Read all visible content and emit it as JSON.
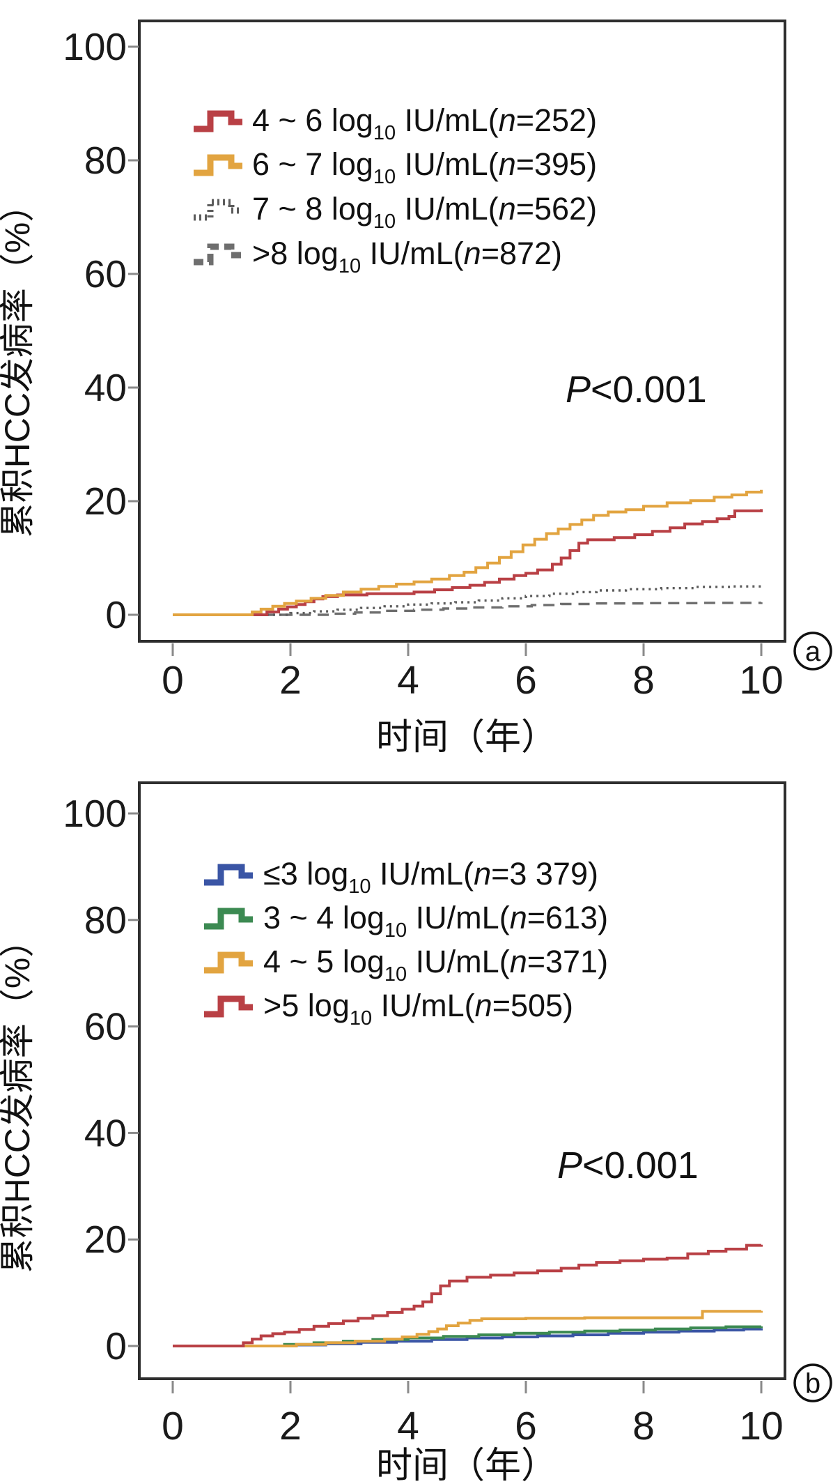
{
  "figure": {
    "background": "#ffffff"
  },
  "chart_data": [
    {
      "type": "line",
      "step": true,
      "panel_label": "a",
      "xlabel": "时间（年）",
      "ylabel": "累积HCC发病率（%）",
      "xlim": [
        0,
        10
      ],
      "ylim": [
        0,
        100
      ],
      "xticks": [
        "0",
        "2",
        "4",
        "6",
        "8",
        "10"
      ],
      "yticks": [
        "0",
        "20",
        "40",
        "60",
        "80",
        "100"
      ],
      "grid": false,
      "legend_position": "upper-left-inside",
      "annotation": {
        "italic": "P",
        "text": "<0.001"
      },
      "series": [
        {
          "id": "4-6",
          "name": "4~6 log10 IU/mL",
          "n": 252,
          "color": "#b94045",
          "line_style": "solid",
          "draw_order": 3,
          "legend": {
            "pre": "4 ~ 6 log",
            "sub": "10",
            "mid": " IU/mL(",
            "n_label": "n",
            "post": "=252)"
          },
          "points": [
            [
              0,
              0
            ],
            [
              1.5,
              0
            ],
            [
              1.6,
              0.5
            ],
            [
              1.8,
              1.0
            ],
            [
              1.95,
              1.4
            ],
            [
              2.1,
              1.8
            ],
            [
              2.25,
              2.3
            ],
            [
              2.4,
              2.8
            ],
            [
              2.55,
              3.2
            ],
            [
              2.8,
              3.5
            ],
            [
              3.3,
              3.7
            ],
            [
              4.1,
              4.0
            ],
            [
              4.45,
              4.4
            ],
            [
              4.75,
              4.8
            ],
            [
              5.05,
              5.2
            ],
            [
              5.3,
              5.7
            ],
            [
              5.55,
              6.3
            ],
            [
              5.8,
              6.9
            ],
            [
              6.0,
              7.3
            ],
            [
              6.2,
              7.9
            ],
            [
              6.45,
              8.9
            ],
            [
              6.6,
              10.0
            ],
            [
              6.75,
              11.3
            ],
            [
              6.9,
              12.6
            ],
            [
              7.05,
              13.2
            ],
            [
              7.5,
              13.6
            ],
            [
              7.85,
              14.1
            ],
            [
              8.15,
              14.7
            ],
            [
              8.45,
              15.3
            ],
            [
              8.7,
              16.0
            ],
            [
              9.0,
              16.4
            ],
            [
              9.25,
              16.9
            ],
            [
              9.45,
              17.3
            ],
            [
              9.55,
              18.3
            ],
            [
              10,
              18.6
            ]
          ]
        },
        {
          "id": "6-7",
          "name": "6~7 log10 IU/mL",
          "n": 395,
          "color": "#e2a440",
          "line_style": "solid",
          "draw_order": 4,
          "legend": {
            "pre": "6 ~ 7 log",
            "sub": "10",
            "mid": " IU/mL(",
            "n_label": "n",
            "post": "=395)"
          },
          "points": [
            [
              0,
              0
            ],
            [
              1.25,
              0
            ],
            [
              1.35,
              0.5
            ],
            [
              1.5,
              1.0
            ],
            [
              1.7,
              1.5
            ],
            [
              1.9,
              2.0
            ],
            [
              2.1,
              2.4
            ],
            [
              2.35,
              2.9
            ],
            [
              2.6,
              3.4
            ],
            [
              2.9,
              4.0
            ],
            [
              3.2,
              4.5
            ],
            [
              3.5,
              5.0
            ],
            [
              3.8,
              5.4
            ],
            [
              4.1,
              5.8
            ],
            [
              4.4,
              6.3
            ],
            [
              4.7,
              6.9
            ],
            [
              4.95,
              7.5
            ],
            [
              5.15,
              8.3
            ],
            [
              5.35,
              9.1
            ],
            [
              5.55,
              10.1
            ],
            [
              5.75,
              11.1
            ],
            [
              5.95,
              12.3
            ],
            [
              6.15,
              13.3
            ],
            [
              6.35,
              14.3
            ],
            [
              6.55,
              15.1
            ],
            [
              6.75,
              15.9
            ],
            [
              6.95,
              16.7
            ],
            [
              7.15,
              17.5
            ],
            [
              7.4,
              18.1
            ],
            [
              7.7,
              18.5
            ],
            [
              8.0,
              19.1
            ],
            [
              8.4,
              19.7
            ],
            [
              8.8,
              20.1
            ],
            [
              9.2,
              20.7
            ],
            [
              9.5,
              21.1
            ],
            [
              9.75,
              21.6
            ],
            [
              10,
              22.0
            ]
          ]
        },
        {
          "id": "7-8",
          "name": "7~8 log10 IU/mL",
          "n": 562,
          "color": "#5c5c5c",
          "line_style": "dotted",
          "draw_order": 2,
          "legend": {
            "pre": "7 ~ 8 log",
            "sub": "10",
            "mid": " IU/mL(",
            "n_label": "n",
            "post": "=562)"
          },
          "points": [
            [
              0,
              0
            ],
            [
              1.7,
              0
            ],
            [
              2.0,
              0.3
            ],
            [
              2.4,
              0.6
            ],
            [
              2.8,
              0.9
            ],
            [
              3.2,
              1.2
            ],
            [
              3.6,
              1.5
            ],
            [
              4.0,
              1.8
            ],
            [
              4.4,
              2.0
            ],
            [
              4.8,
              2.2
            ],
            [
              5.2,
              2.5
            ],
            [
              5.6,
              2.9
            ],
            [
              6.0,
              3.3
            ],
            [
              6.4,
              3.7
            ],
            [
              6.8,
              4.0
            ],
            [
              7.2,
              4.3
            ],
            [
              7.7,
              4.5
            ],
            [
              8.3,
              4.7
            ],
            [
              8.9,
              4.9
            ],
            [
              9.5,
              5.0
            ],
            [
              10,
              5.0
            ]
          ]
        },
        {
          "id": "gt8",
          "name": ">8 log10 IU/mL",
          "n": 872,
          "color": "#6e6e6e",
          "line_style": "dashed",
          "draw_order": 1,
          "legend": {
            "pre": ">8 log",
            "sub": "10",
            "mid": " IU/mL(",
            "n_label": "n",
            "post": "=872)"
          },
          "points": [
            [
              0,
              0
            ],
            [
              2.3,
              0
            ],
            [
              2.7,
              0.2
            ],
            [
              3.1,
              0.4
            ],
            [
              3.6,
              0.7
            ],
            [
              4.1,
              0.9
            ],
            [
              4.6,
              1.1
            ],
            [
              5.1,
              1.3
            ],
            [
              5.6,
              1.5
            ],
            [
              6.1,
              1.7
            ],
            [
              6.6,
              1.9
            ],
            [
              7.1,
              2.0
            ],
            [
              8.0,
              2.05
            ],
            [
              9.0,
              2.1
            ],
            [
              10,
              2.2
            ]
          ]
        }
      ]
    },
    {
      "type": "line",
      "step": true,
      "panel_label": "b",
      "xlabel": "时间（年）",
      "ylabel": "累积HCC发病率（%）",
      "xlim": [
        0,
        10
      ],
      "ylim": [
        0,
        100
      ],
      "xticks": [
        "0",
        "2",
        "4",
        "6",
        "8",
        "10"
      ],
      "yticks": [
        "0",
        "20",
        "40",
        "60",
        "80",
        "100"
      ],
      "grid": false,
      "legend_position": "upper-left-inside",
      "annotation": {
        "italic": "P",
        "text": "<0.001"
      },
      "series": [
        {
          "id": "le3",
          "name": "≤3 log10 IU/mL",
          "n": 3379,
          "color": "#3a55a5",
          "line_style": "solid",
          "draw_order": 1,
          "legend": {
            "pre": "≤3 log",
            "sub": "10",
            "mid": " IU/mL(",
            "n_label": "n",
            "post": "=3 379)"
          },
          "points": [
            [
              0,
              0
            ],
            [
              1.5,
              0
            ],
            [
              2.0,
              0.2
            ],
            [
              2.6,
              0.4
            ],
            [
              3.2,
              0.7
            ],
            [
              3.8,
              0.9
            ],
            [
              4.4,
              1.2
            ],
            [
              5.0,
              1.5
            ],
            [
              5.6,
              1.7
            ],
            [
              6.2,
              1.9
            ],
            [
              6.8,
              2.1
            ],
            [
              7.4,
              2.4
            ],
            [
              8.0,
              2.6
            ],
            [
              8.6,
              2.8
            ],
            [
              9.2,
              3.0
            ],
            [
              9.7,
              3.2
            ],
            [
              10,
              3.3
            ]
          ]
        },
        {
          "id": "3-4",
          "name": "3~4 log10 IU/mL",
          "n": 613,
          "color": "#3c8a52",
          "line_style": "solid",
          "draw_order": 2,
          "legend": {
            "pre": "3 ~ 4 log",
            "sub": "10",
            "mid": " IU/mL(",
            "n_label": "n",
            "post": "=613)"
          },
          "points": [
            [
              0,
              0
            ],
            [
              1.6,
              0
            ],
            [
              1.9,
              0.3
            ],
            [
              2.4,
              0.6
            ],
            [
              2.9,
              0.9
            ],
            [
              3.4,
              1.2
            ],
            [
              4.0,
              1.5
            ],
            [
              4.6,
              1.8
            ],
            [
              5.2,
              2.1
            ],
            [
              5.8,
              2.4
            ],
            [
              6.4,
              2.6
            ],
            [
              7.0,
              2.8
            ],
            [
              7.6,
              3.0
            ],
            [
              8.2,
              3.2
            ],
            [
              8.8,
              3.4
            ],
            [
              9.4,
              3.6
            ],
            [
              10,
              3.7
            ]
          ]
        },
        {
          "id": "4-5",
          "name": "4~5 log10 IU/mL",
          "n": 371,
          "color": "#e2a440",
          "line_style": "solid",
          "draw_order": 3,
          "legend": {
            "pre": "4 ~ 5 log",
            "sub": "10",
            "mid": " IU/mL(",
            "n_label": "n",
            "post": "=371)"
          },
          "points": [
            [
              0,
              0
            ],
            [
              1.8,
              0
            ],
            [
              2.1,
              0.3
            ],
            [
              2.6,
              0.6
            ],
            [
              3.1,
              0.9
            ],
            [
              3.6,
              1.3
            ],
            [
              3.9,
              1.7
            ],
            [
              4.15,
              2.2
            ],
            [
              4.35,
              2.7
            ],
            [
              4.5,
              3.2
            ],
            [
              4.65,
              3.8
            ],
            [
              4.85,
              4.3
            ],
            [
              5.05,
              4.8
            ],
            [
              5.25,
              5.1
            ],
            [
              6.0,
              5.2
            ],
            [
              7.0,
              5.3
            ],
            [
              8.0,
              5.3
            ],
            [
              9.0,
              6.5
            ],
            [
              10,
              6.6
            ]
          ]
        },
        {
          "id": "gt5",
          "name": ">5 log10 IU/mL",
          "n": 505,
          "color": "#b94045",
          "line_style": "solid",
          "draw_order": 4,
          "legend": {
            "pre": ">5 log",
            "sub": "10",
            "mid": " IU/mL(",
            "n_label": "n",
            "post": "=505)"
          },
          "points": [
            [
              0,
              0
            ],
            [
              1.1,
              0
            ],
            [
              1.2,
              0.6
            ],
            [
              1.35,
              1.3
            ],
            [
              1.5,
              1.9
            ],
            [
              1.7,
              2.3
            ],
            [
              1.9,
              2.6
            ],
            [
              2.15,
              3.1
            ],
            [
              2.4,
              3.7
            ],
            [
              2.65,
              4.2
            ],
            [
              2.9,
              4.7
            ],
            [
              3.15,
              5.2
            ],
            [
              3.4,
              5.7
            ],
            [
              3.65,
              6.3
            ],
            [
              3.9,
              6.9
            ],
            [
              4.1,
              7.5
            ],
            [
              4.25,
              8.3
            ],
            [
              4.4,
              9.8
            ],
            [
              4.55,
              11.3
            ],
            [
              4.7,
              12.2
            ],
            [
              5.0,
              12.9
            ],
            [
              5.4,
              13.3
            ],
            [
              5.8,
              13.7
            ],
            [
              6.2,
              14.1
            ],
            [
              6.6,
              14.6
            ],
            [
              6.9,
              15.2
            ],
            [
              7.2,
              15.7
            ],
            [
              7.6,
              16.0
            ],
            [
              8.0,
              16.3
            ],
            [
              8.4,
              16.5
            ],
            [
              8.75,
              17.3
            ],
            [
              9.1,
              17.8
            ],
            [
              9.4,
              18.2
            ],
            [
              9.75,
              18.9
            ],
            [
              10,
              19.0
            ]
          ]
        }
      ]
    }
  ]
}
